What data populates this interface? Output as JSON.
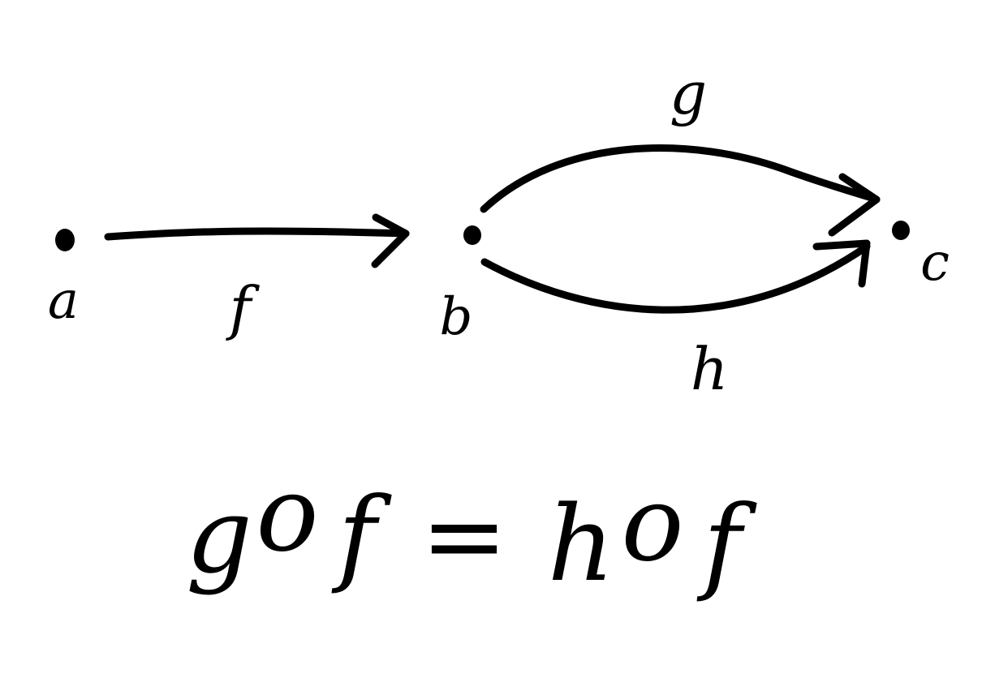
{
  "colors": {
    "ink": "#000000",
    "background": "#ffffff"
  },
  "nodes": [
    {
      "id": "a",
      "label": "a"
    },
    {
      "id": "b",
      "label": "b"
    },
    {
      "id": "c",
      "label": "c"
    }
  ],
  "edges": [
    {
      "id": "f",
      "label": "f",
      "from": "a",
      "to": "b"
    },
    {
      "id": "g",
      "label": "g",
      "from": "b",
      "to": "c"
    },
    {
      "id": "h",
      "label": "h",
      "from": "b",
      "to": "c"
    }
  ],
  "equation": {
    "lhs": {
      "left": "g",
      "op": "o",
      "right": "f"
    },
    "equals": "=",
    "rhs": {
      "left": "h",
      "op": "o",
      "right": "f"
    }
  }
}
